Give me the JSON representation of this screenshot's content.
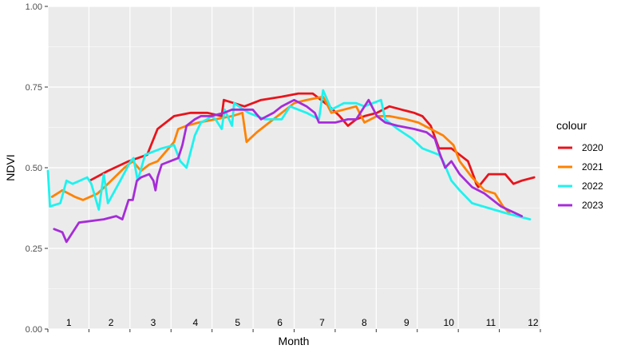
{
  "chart_data": {
    "type": "line",
    "title": "",
    "xlabel": "Month",
    "ylabel": "NDVI",
    "xlim": [
      0.55,
      12.45
    ],
    "ylim": [
      0,
      1
    ],
    "y_ticks": [
      "0.00",
      "0.25",
      "0.50",
      "0.75",
      "1.00"
    ],
    "y_tick_values": [
      0,
      0.25,
      0.5,
      0.75,
      1.0
    ],
    "x_tick_labels": [
      "1",
      "2",
      "3",
      "4",
      "5",
      "6",
      "7",
      "8",
      "9",
      "10",
      "11",
      "12"
    ],
    "grid": true,
    "background": "#ebebeb",
    "legend": {
      "title": "colour",
      "position": "right"
    },
    "series": [
      {
        "name": "2020",
        "color": "#e8141c",
        "points": [
          [
            1.56,
            0.46
          ],
          [
            2.0,
            0.49
          ],
          [
            2.5,
            0.52
          ],
          [
            2.95,
            0.54
          ],
          [
            3.2,
            0.62
          ],
          [
            3.6,
            0.66
          ],
          [
            4.0,
            0.67
          ],
          [
            4.4,
            0.67
          ],
          [
            4.75,
            0.66
          ],
          [
            4.8,
            0.71
          ],
          [
            5.05,
            0.7
          ],
          [
            5.3,
            0.69
          ],
          [
            5.7,
            0.71
          ],
          [
            6.2,
            0.72
          ],
          [
            6.6,
            0.73
          ],
          [
            6.95,
            0.73
          ],
          [
            7.35,
            0.69
          ],
          [
            7.6,
            0.66
          ],
          [
            7.8,
            0.63
          ],
          [
            8.0,
            0.65
          ],
          [
            8.2,
            0.66
          ],
          [
            8.5,
            0.67
          ],
          [
            8.8,
            0.69
          ],
          [
            9.1,
            0.68
          ],
          [
            9.4,
            0.67
          ],
          [
            9.6,
            0.66
          ],
          [
            9.8,
            0.63
          ],
          [
            10.0,
            0.56
          ],
          [
            10.3,
            0.56
          ],
          [
            10.5,
            0.54
          ],
          [
            10.7,
            0.52
          ],
          [
            10.85,
            0.47
          ],
          [
            10.9,
            0.45
          ],
          [
            10.95,
            0.44
          ],
          [
            11.2,
            0.48
          ],
          [
            11.6,
            0.48
          ],
          [
            11.8,
            0.45
          ],
          [
            12.0,
            0.46
          ],
          [
            12.3,
            0.47
          ]
        ]
      },
      {
        "name": "2021",
        "color": "#ff8200",
        "points": [
          [
            0.65,
            0.41
          ],
          [
            0.9,
            0.43
          ],
          [
            1.2,
            0.41
          ],
          [
            1.4,
            0.4
          ],
          [
            1.75,
            0.42
          ],
          [
            2.0,
            0.45
          ],
          [
            2.4,
            0.5
          ],
          [
            2.6,
            0.52
          ],
          [
            2.8,
            0.49
          ],
          [
            3.0,
            0.51
          ],
          [
            3.2,
            0.52
          ],
          [
            3.4,
            0.55
          ],
          [
            3.6,
            0.58
          ],
          [
            3.7,
            0.62
          ],
          [
            3.9,
            0.63
          ],
          [
            4.2,
            0.64
          ],
          [
            4.6,
            0.65
          ],
          [
            5.0,
            0.66
          ],
          [
            5.25,
            0.67
          ],
          [
            5.35,
            0.58
          ],
          [
            5.6,
            0.61
          ],
          [
            5.9,
            0.64
          ],
          [
            6.2,
            0.67
          ],
          [
            6.5,
            0.7
          ],
          [
            6.8,
            0.71
          ],
          [
            7.2,
            0.72
          ],
          [
            7.4,
            0.67
          ],
          [
            7.7,
            0.68
          ],
          [
            8.0,
            0.69
          ],
          [
            8.2,
            0.64
          ],
          [
            8.5,
            0.66
          ],
          [
            8.8,
            0.66
          ],
          [
            9.2,
            0.65
          ],
          [
            9.5,
            0.64
          ],
          [
            9.8,
            0.62
          ],
          [
            10.1,
            0.6
          ],
          [
            10.35,
            0.57
          ],
          [
            10.5,
            0.52
          ],
          [
            10.8,
            0.47
          ],
          [
            10.95,
            0.45
          ],
          [
            11.1,
            0.43
          ],
          [
            11.35,
            0.42
          ],
          [
            11.55,
            0.38
          ],
          [
            11.7,
            0.36
          ]
        ]
      },
      {
        "name": "2022",
        "color": "#1ff2ee",
        "points": [
          [
            0.55,
            0.49
          ],
          [
            0.6,
            0.38
          ],
          [
            0.85,
            0.39
          ],
          [
            1.0,
            0.46
          ],
          [
            1.15,
            0.45
          ],
          [
            1.5,
            0.47
          ],
          [
            1.6,
            0.45
          ],
          [
            1.78,
            0.37
          ],
          [
            1.9,
            0.48
          ],
          [
            2.0,
            0.39
          ],
          [
            2.3,
            0.46
          ],
          [
            2.55,
            0.52
          ],
          [
            2.62,
            0.53
          ],
          [
            2.72,
            0.46
          ],
          [
            2.9,
            0.54
          ],
          [
            3.3,
            0.56
          ],
          [
            3.6,
            0.57
          ],
          [
            3.75,
            0.52
          ],
          [
            3.9,
            0.5
          ],
          [
            4.1,
            0.6
          ],
          [
            4.25,
            0.64
          ],
          [
            4.4,
            0.65
          ],
          [
            4.5,
            0.66
          ],
          [
            4.6,
            0.65
          ],
          [
            4.75,
            0.62
          ],
          [
            4.82,
            0.68
          ],
          [
            5.0,
            0.63
          ],
          [
            5.05,
            0.7
          ],
          [
            5.4,
            0.67
          ],
          [
            5.8,
            0.65
          ],
          [
            6.2,
            0.65
          ],
          [
            6.4,
            0.69
          ],
          [
            6.8,
            0.67
          ],
          [
            7.1,
            0.65
          ],
          [
            7.2,
            0.74
          ],
          [
            7.4,
            0.68
          ],
          [
            7.7,
            0.7
          ],
          [
            8.0,
            0.7
          ],
          [
            8.2,
            0.69
          ],
          [
            8.4,
            0.7
          ],
          [
            8.6,
            0.71
          ],
          [
            8.7,
            0.65
          ],
          [
            9.0,
            0.62
          ],
          [
            9.35,
            0.59
          ],
          [
            9.6,
            0.56
          ],
          [
            10.0,
            0.54
          ],
          [
            10.1,
            0.52
          ],
          [
            10.3,
            0.46
          ],
          [
            10.5,
            0.43
          ],
          [
            10.8,
            0.39
          ],
          [
            11.6,
            0.36
          ],
          [
            12.2,
            0.34
          ]
        ]
      },
      {
        "name": "2023",
        "color": "#a62cd8",
        "points": [
          [
            0.7,
            0.31
          ],
          [
            0.9,
            0.3
          ],
          [
            1.0,
            0.27
          ],
          [
            1.3,
            0.33
          ],
          [
            1.9,
            0.34
          ],
          [
            2.2,
            0.35
          ],
          [
            2.35,
            0.34
          ],
          [
            2.5,
            0.4
          ],
          [
            2.6,
            0.4
          ],
          [
            2.7,
            0.46
          ],
          [
            2.8,
            0.47
          ],
          [
            3.0,
            0.48
          ],
          [
            3.1,
            0.46
          ],
          [
            3.15,
            0.43
          ],
          [
            3.2,
            0.47
          ],
          [
            3.3,
            0.51
          ],
          [
            3.5,
            0.52
          ],
          [
            3.7,
            0.53
          ],
          [
            3.8,
            0.57
          ],
          [
            3.9,
            0.63
          ],
          [
            4.1,
            0.65
          ],
          [
            4.25,
            0.66
          ],
          [
            4.5,
            0.66
          ],
          [
            4.8,
            0.67
          ],
          [
            5.0,
            0.68
          ],
          [
            5.25,
            0.68
          ],
          [
            5.5,
            0.68
          ],
          [
            5.7,
            0.65
          ],
          [
            6.0,
            0.67
          ],
          [
            6.2,
            0.69
          ],
          [
            6.5,
            0.71
          ],
          [
            6.8,
            0.69
          ],
          [
            7.0,
            0.67
          ],
          [
            7.1,
            0.64
          ],
          [
            7.5,
            0.64
          ],
          [
            7.8,
            0.65
          ],
          [
            8.0,
            0.65
          ],
          [
            8.3,
            0.71
          ],
          [
            8.5,
            0.66
          ],
          [
            8.7,
            0.64
          ],
          [
            9.0,
            0.63
          ],
          [
            9.4,
            0.62
          ],
          [
            9.7,
            0.61
          ],
          [
            9.9,
            0.59
          ],
          [
            10.0,
            0.55
          ],
          [
            10.15,
            0.5
          ],
          [
            10.3,
            0.52
          ],
          [
            10.5,
            0.48
          ],
          [
            10.8,
            0.44
          ],
          [
            11.1,
            0.42
          ],
          [
            11.5,
            0.38
          ],
          [
            12.0,
            0.35
          ]
        ]
      }
    ]
  }
}
